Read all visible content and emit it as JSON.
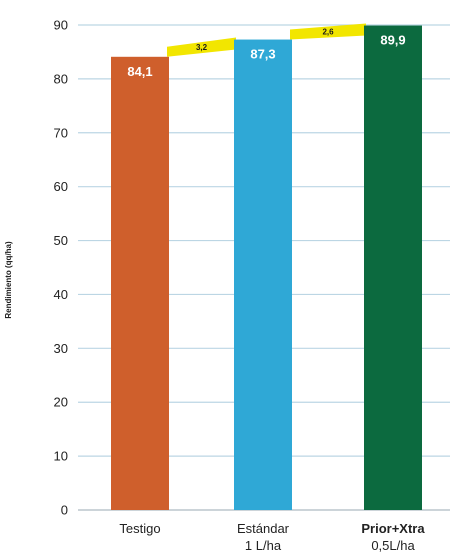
{
  "chart_data": {
    "type": "bar",
    "title": "",
    "xlabel": "",
    "ylabel": "Rendimiento (qq/ha)",
    "ylim": [
      0,
      90
    ],
    "yticks": [
      0,
      10,
      20,
      30,
      40,
      50,
      60,
      70,
      80,
      90
    ],
    "grid": true,
    "categories": [
      {
        "line1": "Testigo",
        "line2": ""
      },
      {
        "line1": "Estándar",
        "line2": "1 L/ha"
      },
      {
        "line1": "Prior+Xtra",
        "line2": "0,5L/ha"
      }
    ],
    "values": [
      84.1,
      87.3,
      89.9
    ],
    "value_labels": [
      "84,1",
      "87,3",
      "89,9"
    ],
    "differences": [
      {
        "from": 0,
        "to": 1,
        "label": "3,2"
      },
      {
        "from": 1,
        "to": 2,
        "label": "2,6"
      }
    ],
    "colors": {
      "bars": [
        "#cf5f2c",
        "#2fa8d6",
        "#0c6a3f"
      ],
      "grid": "#bcd6e4",
      "difference_band": "#f2e600",
      "brand_label": "#8aab18"
    }
  }
}
